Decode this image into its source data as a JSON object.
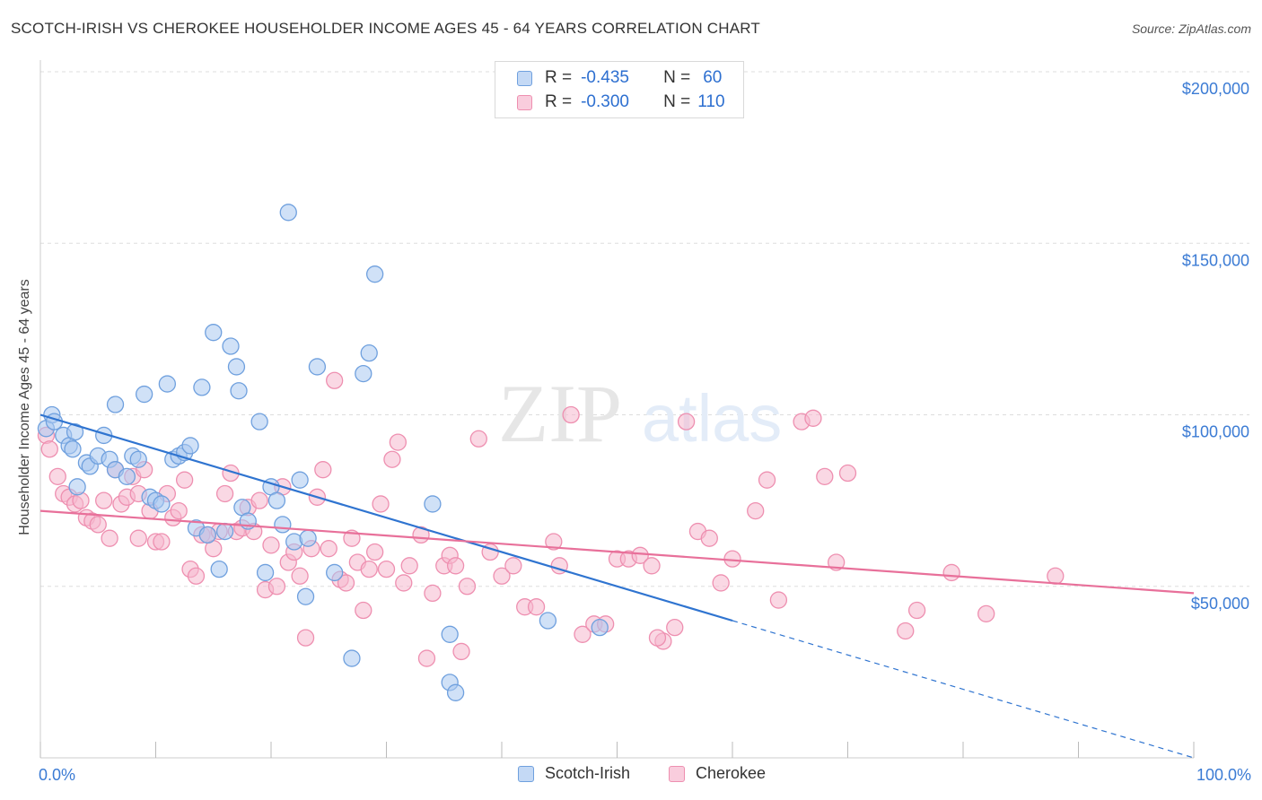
{
  "title": "SCOTCH-IRISH VS CHEROKEE HOUSEHOLDER INCOME AGES 45 - 64 YEARS CORRELATION CHART",
  "source": "Source: ZipAtlas.com",
  "watermark": {
    "zip": "ZIP",
    "atlas": "atlas"
  },
  "colors": {
    "blue_fill": "#a9c8f0",
    "blue_stroke": "#6fa0de",
    "blue_line": "#2f74d0",
    "pink_fill": "#f6b8cd",
    "pink_stroke": "#ee8fb0",
    "pink_line": "#e8709a",
    "tick_label": "#3b7bd4",
    "grid": "#dddddd"
  },
  "legend": {
    "rows": [
      {
        "series": "Scotch-Irish",
        "r_label": "R =",
        "r_value": "-0.435",
        "n_label": "N =",
        "n_value": "60"
      },
      {
        "series": "Cherokee",
        "r_label": "R =",
        "r_value": "-0.300",
        "n_label": "N =",
        "n_value": "110"
      }
    ]
  },
  "bottom_legend": [
    "Scotch-Irish",
    "Cherokee"
  ],
  "chart_data": {
    "type": "scatter",
    "title": "SCOTCH-IRISH VS CHEROKEE HOUSEHOLDER INCOME AGES 45 - 64 YEARS CORRELATION CHART",
    "xlabel": "",
    "ylabel": "Householder Income Ages 45 - 64 years",
    "xlim": [
      0,
      100
    ],
    "ylim": [
      0,
      200000
    ],
    "x_tick_labels": [
      "0.0%",
      "100.0%"
    ],
    "y_ticks": [
      50000,
      100000,
      150000,
      200000
    ],
    "y_tick_labels": [
      "$50,000",
      "$100,000",
      "$150,000",
      "$200,000"
    ],
    "grid": true,
    "legend_position": "top-center",
    "series": [
      {
        "name": "Scotch-Irish",
        "r": -0.435,
        "n": 60,
        "trend": {
          "x0": 0,
          "y0": 100000,
          "x1": 60,
          "y1": 40000,
          "dashed_to_x": 100,
          "dashed_to_y": 0
        },
        "points": [
          [
            0.5,
            96000
          ],
          [
            1,
            100000
          ],
          [
            1.2,
            98000
          ],
          [
            2,
            94000
          ],
          [
            2.5,
            91000
          ],
          [
            3,
            95000
          ],
          [
            4,
            86000
          ],
          [
            4.3,
            85000
          ],
          [
            5,
            88000
          ],
          [
            5.5,
            94000
          ],
          [
            6,
            87000
          ],
          [
            6.5,
            84000
          ],
          [
            6.5,
            103000
          ],
          [
            7.5,
            82000
          ],
          [
            8,
            88000
          ],
          [
            8.5,
            87000
          ],
          [
            9,
            106000
          ],
          [
            9.5,
            76000
          ],
          [
            10,
            75000
          ],
          [
            10.5,
            74000
          ],
          [
            11,
            109000
          ],
          [
            11.5,
            87000
          ],
          [
            12,
            88000
          ],
          [
            12.5,
            89000
          ],
          [
            13,
            91000
          ],
          [
            13.5,
            67000
          ],
          [
            14,
            108000
          ],
          [
            14.5,
            65000
          ],
          [
            15,
            124000
          ],
          [
            15.5,
            55000
          ],
          [
            16,
            66000
          ],
          [
            16.5,
            120000
          ],
          [
            17,
            114000
          ],
          [
            17.2,
            107000
          ],
          [
            17.5,
            73000
          ],
          [
            18,
            69000
          ],
          [
            19,
            98000
          ],
          [
            19.5,
            54000
          ],
          [
            20,
            79000
          ],
          [
            20.5,
            75000
          ],
          [
            21,
            68000
          ],
          [
            21.5,
            159000
          ],
          [
            22,
            63000
          ],
          [
            22.5,
            81000
          ],
          [
            23,
            47000
          ],
          [
            24,
            114000
          ],
          [
            25.5,
            54000
          ],
          [
            27,
            29000
          ],
          [
            28,
            112000
          ],
          [
            28.5,
            118000
          ],
          [
            29,
            141000
          ],
          [
            34,
            74000
          ],
          [
            35.5,
            36000
          ],
          [
            35.5,
            22000
          ],
          [
            36,
            19000
          ],
          [
            44,
            40000
          ],
          [
            48.5,
            38000
          ],
          [
            2.8,
            90000
          ],
          [
            3.2,
            79000
          ],
          [
            23.2,
            64000
          ]
        ]
      },
      {
        "name": "Cherokee",
        "r": -0.3,
        "n": 110,
        "trend": {
          "x0": 0,
          "y0": 72000,
          "x1": 100,
          "y1": 48000
        },
        "points": [
          [
            0.5,
            94000
          ],
          [
            0.8,
            90000
          ],
          [
            1.5,
            82000
          ],
          [
            2,
            77000
          ],
          [
            2.5,
            76000
          ],
          [
            3,
            74000
          ],
          [
            3.5,
            75000
          ],
          [
            4,
            70000
          ],
          [
            4.5,
            69000
          ],
          [
            5,
            68000
          ],
          [
            5.5,
            75000
          ],
          [
            6,
            64000
          ],
          [
            6.5,
            84000
          ],
          [
            7,
            74000
          ],
          [
            7.5,
            76000
          ],
          [
            8,
            82000
          ],
          [
            8.5,
            77000
          ],
          [
            8.5,
            64000
          ],
          [
            9,
            84000
          ],
          [
            9.5,
            72000
          ],
          [
            10,
            63000
          ],
          [
            10.5,
            63000
          ],
          [
            11,
            77000
          ],
          [
            11.5,
            70000
          ],
          [
            12,
            72000
          ],
          [
            12.5,
            81000
          ],
          [
            13,
            55000
          ],
          [
            13.5,
            53000
          ],
          [
            14,
            65000
          ],
          [
            14.5,
            65000
          ],
          [
            15,
            61000
          ],
          [
            15.5,
            66000
          ],
          [
            16,
            77000
          ],
          [
            16.5,
            83000
          ],
          [
            17,
            66000
          ],
          [
            17.5,
            67000
          ],
          [
            18,
            73000
          ],
          [
            18.5,
            66000
          ],
          [
            19,
            75000
          ],
          [
            19.5,
            49000
          ],
          [
            20,
            62000
          ],
          [
            20.5,
            50000
          ],
          [
            21,
            79000
          ],
          [
            21.5,
            57000
          ],
          [
            22,
            60000
          ],
          [
            22.5,
            53000
          ],
          [
            23,
            35000
          ],
          [
            23.5,
            61000
          ],
          [
            24,
            76000
          ],
          [
            24.5,
            84000
          ],
          [
            25,
            61000
          ],
          [
            25.5,
            110000
          ],
          [
            26,
            52000
          ],
          [
            26.5,
            51000
          ],
          [
            27,
            64000
          ],
          [
            27.5,
            57000
          ],
          [
            28,
            43000
          ],
          [
            28.5,
            55000
          ],
          [
            29,
            60000
          ],
          [
            29.5,
            74000
          ],
          [
            30,
            55000
          ],
          [
            30.5,
            87000
          ],
          [
            31,
            92000
          ],
          [
            31.5,
            51000
          ],
          [
            32,
            56000
          ],
          [
            33,
            65000
          ],
          [
            33.5,
            29000
          ],
          [
            34,
            48000
          ],
          [
            35,
            56000
          ],
          [
            35.5,
            59000
          ],
          [
            36,
            56000
          ],
          [
            36.5,
            31000
          ],
          [
            37,
            50000
          ],
          [
            38,
            93000
          ],
          [
            39,
            60000
          ],
          [
            40,
            53000
          ],
          [
            41,
            56000
          ],
          [
            42,
            44000
          ],
          [
            43,
            44000
          ],
          [
            44.5,
            63000
          ],
          [
            45,
            56000
          ],
          [
            46,
            100000
          ],
          [
            47,
            36000
          ],
          [
            48,
            39000
          ],
          [
            49,
            39000
          ],
          [
            50,
            58000
          ],
          [
            51,
            58000
          ],
          [
            52,
            59000
          ],
          [
            53,
            56000
          ],
          [
            54,
            34000
          ],
          [
            55,
            38000
          ],
          [
            56,
            98000
          ],
          [
            57,
            66000
          ],
          [
            58,
            64000
          ],
          [
            59,
            51000
          ],
          [
            60,
            58000
          ],
          [
            62,
            72000
          ],
          [
            63,
            81000
          ],
          [
            64,
            46000
          ],
          [
            66,
            98000
          ],
          [
            67,
            99000
          ],
          [
            68,
            82000
          ],
          [
            69,
            57000
          ],
          [
            70,
            83000
          ],
          [
            75,
            37000
          ],
          [
            76,
            43000
          ],
          [
            79,
            54000
          ],
          [
            82,
            42000
          ],
          [
            88,
            53000
          ],
          [
            53.5,
            35000
          ]
        ]
      }
    ]
  }
}
